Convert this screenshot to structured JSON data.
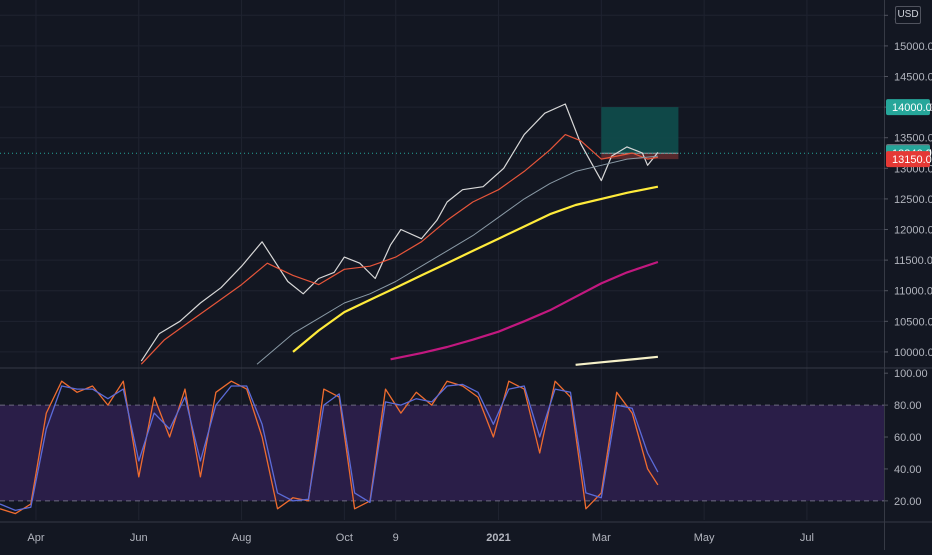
{
  "currency_label": "USD",
  "chart_data": [
    {
      "type": "line",
      "name": "price-pane",
      "y_ticks": [
        "1…",
        "15000.0",
        "14500.0",
        "14000.0",
        "13500.0",
        "13000.0",
        "12500.0",
        "12000.0",
        "11500.0",
        "11000.0",
        "10500.0",
        "10000.0"
      ],
      "y_tick_values": [
        15500,
        15000,
        14500,
        14000,
        13500,
        13000,
        12500,
        12000,
        11500,
        11000,
        10500,
        10000
      ],
      "ylim": [
        9770,
        15750
      ],
      "x_ticks": [
        "Apr",
        "Jun",
        "Aug",
        "Oct",
        "9",
        "2021",
        "Mar",
        "May",
        "Jul"
      ],
      "x_tick_values": [
        0,
        2,
        4,
        6,
        7,
        9,
        11,
        13,
        15
      ],
      "xlim": [
        -0.7,
        16.5
      ],
      "series": [
        {
          "kind": "price",
          "color": "#d8d8d8",
          "x": [
            2.05,
            2.4,
            2.8,
            3.2,
            3.6,
            4.0,
            4.4,
            4.9,
            5.2,
            5.5,
            5.8,
            6.0,
            6.3,
            6.6,
            6.9,
            7.1,
            7.5,
            7.8,
            8.0,
            8.3,
            8.7,
            9.1,
            9.5,
            9.9,
            10.3,
            10.6,
            10.8,
            11.0,
            11.2,
            11.5,
            11.8,
            11.9,
            12.1
          ],
          "values": [
            9850,
            10300,
            10500,
            10800,
            11050,
            11400,
            11800,
            11150,
            10950,
            11200,
            11300,
            11550,
            11450,
            11200,
            11750,
            12000,
            11850,
            12150,
            12450,
            12650,
            12700,
            13000,
            13550,
            13900,
            14050,
            13400,
            13100,
            12800,
            13200,
            13350,
            13250,
            13050,
            13260
          ]
        },
        {
          "kind": "ema-fast",
          "color": "#e6553a",
          "x": [
            2.05,
            2.5,
            3.0,
            3.5,
            4.0,
            4.5,
            5.0,
            5.5,
            6.0,
            6.5,
            7.0,
            7.5,
            8.0,
            8.5,
            9.0,
            9.5,
            10.0,
            10.3,
            10.6,
            11.0,
            11.3,
            11.6,
            11.9,
            12.1
          ],
          "values": [
            9800,
            10200,
            10500,
            10800,
            11100,
            11450,
            11250,
            11100,
            11350,
            11400,
            11550,
            11800,
            12150,
            12450,
            12650,
            12950,
            13300,
            13550,
            13450,
            13150,
            13200,
            13250,
            13150,
            13180
          ]
        },
        {
          "kind": "ema-mid",
          "color": "#8a9aa6",
          "x": [
            4.3,
            5.0,
            5.5,
            6.0,
            6.5,
            7.0,
            7.5,
            8.0,
            8.5,
            9.0,
            9.5,
            10.0,
            10.5,
            11.0,
            11.5,
            12.1
          ],
          "values": [
            9800,
            10300,
            10550,
            10800,
            10950,
            11150,
            11400,
            11650,
            11900,
            12200,
            12500,
            12750,
            12950,
            13050,
            13150,
            13200
          ]
        },
        {
          "kind": "sma-200",
          "color": "#ffeb3b",
          "x": [
            5.0,
            5.5,
            6.0,
            6.5,
            7.0,
            7.5,
            8.0,
            8.5,
            9.0,
            9.5,
            10.0,
            10.5,
            11.0,
            11.5,
            12.1
          ],
          "values": [
            10000,
            10350,
            10650,
            10850,
            11050,
            11250,
            11450,
            11650,
            11850,
            12050,
            12250,
            12400,
            12500,
            12600,
            12700
          ]
        },
        {
          "kind": "sma-400",
          "color": "#c2187f",
          "x": [
            6.9,
            7.5,
            8.0,
            8.5,
            9.0,
            9.5,
            10.0,
            10.5,
            11.0,
            11.5,
            12.1
          ],
          "values": [
            9880,
            9980,
            10080,
            10200,
            10330,
            10500,
            10680,
            10900,
            11120,
            11300,
            11470
          ]
        },
        {
          "kind": "sma-800",
          "color": "#f5f0c8",
          "x": [
            10.5,
            11.0,
            11.5,
            12.1
          ],
          "values": [
            9790,
            9830,
            9870,
            9920
          ]
        }
      ],
      "annotations": {
        "position_box": {
          "x": [
            11.0,
            12.5
          ],
          "target": 14000,
          "entry": 13246.9,
          "stop": 13150,
          "profit_color": "#0f4e4c",
          "loss_color": "#5b2a2d"
        },
        "last_price_line": 13246.9
      },
      "price_labels": [
        {
          "text": "14000.0",
          "value": 14000,
          "color": "#26a69a"
        },
        {
          "text": "13267.0",
          "value": 13267,
          "color": "#6b6f78"
        },
        {
          "text": "13246.9",
          "value": 13246.9,
          "color": "#26a69a"
        },
        {
          "text": "13150.0",
          "value": 13150,
          "color": "#e53935"
        }
      ]
    },
    {
      "type": "line",
      "name": "stochastic-pane",
      "y_ticks": [
        "100.00",
        "80.00",
        "60.00",
        "40.00",
        "20.00"
      ],
      "y_tick_values": [
        100,
        80,
        60,
        40,
        20
      ],
      "ylim": [
        8,
        102
      ],
      "band": [
        20,
        80
      ],
      "band_color": "#2a1e48",
      "series": [
        {
          "kind": "k-line",
          "color": "#ef6c2f",
          "x": [
            -0.7,
            -0.4,
            -0.1,
            0.2,
            0.5,
            0.8,
            1.1,
            1.4,
            1.7,
            2.0,
            2.3,
            2.6,
            2.9,
            3.2,
            3.5,
            3.8,
            4.1,
            4.4,
            4.7,
            5.0,
            5.3,
            5.6,
            5.9,
            6.2,
            6.5,
            6.8,
            7.1,
            7.4,
            7.7,
            8.0,
            8.3,
            8.6,
            8.9,
            9.2,
            9.5,
            9.8,
            10.1,
            10.4,
            10.7,
            11.0,
            11.3,
            11.6,
            11.9,
            12.1
          ],
          "values": [
            15,
            12,
            18,
            75,
            95,
            88,
            92,
            80,
            95,
            35,
            85,
            60,
            90,
            35,
            88,
            95,
            90,
            60,
            15,
            22,
            20,
            90,
            85,
            15,
            20,
            90,
            75,
            88,
            80,
            95,
            92,
            85,
            60,
            95,
            90,
            50,
            95,
            85,
            15,
            25,
            88,
            75,
            40,
            30
          ]
        },
        {
          "kind": "d-line",
          "color": "#5b6bd8",
          "x": [
            -0.7,
            -0.4,
            -0.1,
            0.2,
            0.5,
            0.8,
            1.1,
            1.4,
            1.7,
            2.0,
            2.3,
            2.6,
            2.9,
            3.2,
            3.5,
            3.8,
            4.1,
            4.4,
            4.7,
            5.0,
            5.3,
            5.6,
            5.9,
            6.2,
            6.5,
            6.8,
            7.1,
            7.4,
            7.7,
            8.0,
            8.3,
            8.6,
            8.9,
            9.2,
            9.5,
            9.8,
            10.1,
            10.4,
            10.7,
            11.0,
            11.3,
            11.6,
            11.9,
            12.1
          ],
          "values": [
            18,
            14,
            16,
            65,
            92,
            90,
            90,
            84,
            90,
            45,
            75,
            65,
            85,
            45,
            80,
            92,
            92,
            68,
            25,
            20,
            21,
            80,
            87,
            25,
            19,
            82,
            80,
            84,
            82,
            92,
            93,
            88,
            68,
            90,
            92,
            60,
            90,
            88,
            25,
            22,
            80,
            78,
            50,
            38
          ]
        }
      ]
    }
  ]
}
